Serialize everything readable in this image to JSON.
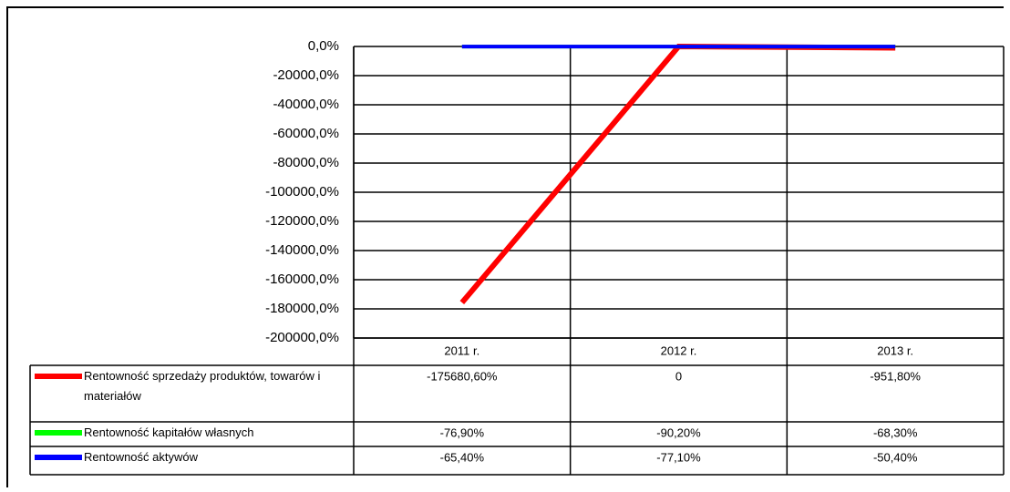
{
  "chart_data": {
    "type": "line",
    "categories": [
      "2011 r.",
      "2012 r.",
      "2013 r."
    ],
    "series": [
      {
        "name": "Rentowność sprzedaży produktów, towarów i materiałów",
        "color": "#ff0000",
        "values": [
          -175680.6,
          0,
          -951.8
        ],
        "value_labels": [
          "-175680,60%",
          "0",
          "-951,80%"
        ]
      },
      {
        "name": "Rentowność kapitałów własnych",
        "color": "#00ff00",
        "values": [
          -76.9,
          -90.2,
          -68.3
        ],
        "value_labels": [
          "-76,90%",
          "-90,20%",
          "-68,30%"
        ]
      },
      {
        "name": "Rentowność aktywów",
        "color": "#0000ff",
        "values": [
          -65.4,
          -77.1,
          -50.4
        ],
        "value_labels": [
          "-65,40%",
          "-77,10%",
          "-50,40%"
        ]
      }
    ],
    "ylim": [
      -200000,
      0
    ],
    "yticks": [
      {
        "value": 0,
        "label": "0,0%"
      },
      {
        "value": -20000,
        "label": "-20000,0%"
      },
      {
        "value": -40000,
        "label": "-40000,0%"
      },
      {
        "value": -60000,
        "label": "-60000,0%"
      },
      {
        "value": -80000,
        "label": "-80000,0%"
      },
      {
        "value": -100000,
        "label": "-100000,0%"
      },
      {
        "value": -120000,
        "label": "-120000,0%"
      },
      {
        "value": -140000,
        "label": "-140000,0%"
      },
      {
        "value": -160000,
        "label": "-160000,0%"
      },
      {
        "value": -180000,
        "label": "-180000,0%"
      },
      {
        "value": -200000,
        "label": "-200000,0%"
      }
    ],
    "grid": true
  }
}
